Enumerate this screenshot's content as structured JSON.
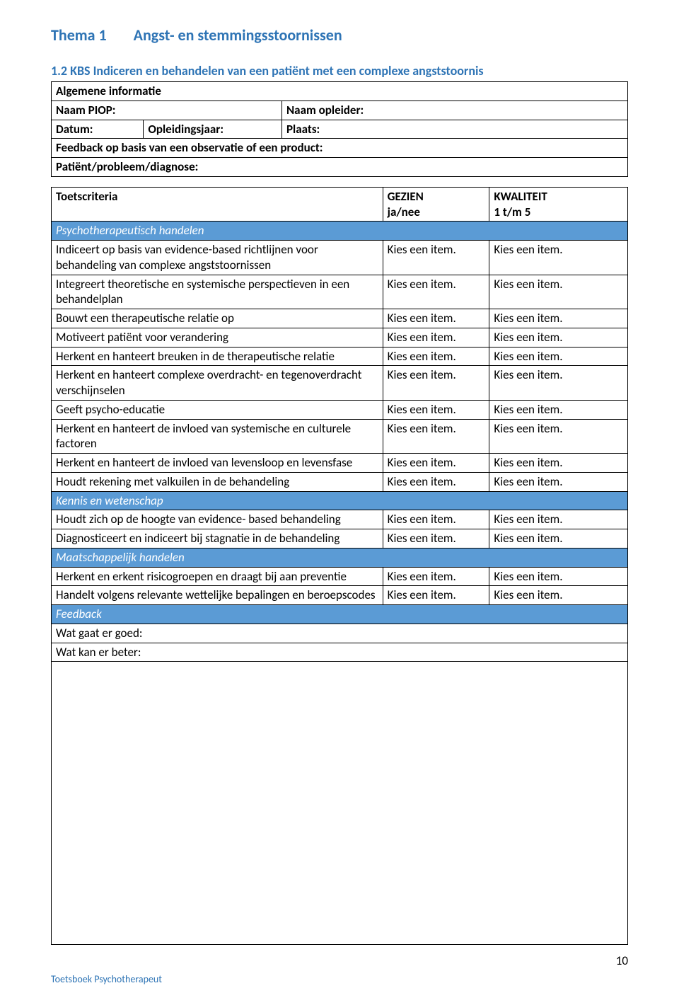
{
  "theme": {
    "label": "Thema 1",
    "title": "Angst- en stemmingsstoornissen"
  },
  "subheading": "1.2 KBS Indiceren en behandelen van een patiënt met een complexe angststoornis",
  "info": {
    "header": "Algemene informatie",
    "naam_piop_label": "Naam PIOP:",
    "naam_opleider_label": "Naam opleider:",
    "datum_label": "Datum:",
    "opleidingsjaar_label": "Opleidingsjaar:",
    "plaats_label": "Plaats:",
    "feedback_basis": "Feedback op basis van een observatie of een product:",
    "patient_diag": "Patiënt/probleem/diagnose:"
  },
  "criteria_header": {
    "col1": "Toetscriteria",
    "col2_line1": "GEZIEN",
    "col2_line2": "ja/nee",
    "col3_line1": "KWALITEIT",
    "col3_line2": "1 t/m 5"
  },
  "section_psycho": "Psychotherapeutisch handelen",
  "section_kennis": "Kennis en wetenschap",
  "section_maat": "Maatschappelijk handelen",
  "section_feedback": "Feedback",
  "placeholder": "Kies een item.",
  "rows_psycho": [
    "Indiceert op basis van evidence-based richtlijnen voor behandeling van complexe angststoornissen",
    "Integreert theoretische en systemische perspectieven in een behandelplan",
    "Bouwt een therapeutische relatie op",
    "Motiveert patiënt voor verandering",
    "Herkent en hanteert breuken in de therapeutische relatie",
    "Herkent en hanteert complexe overdracht- en tegenoverdracht verschijnselen",
    "Geeft psycho-educatie",
    "Herkent en hanteert de invloed van systemische en culturele factoren",
    "Herkent en hanteert de invloed van levensloop en levensfase",
    "Houdt rekening met valkuilen in de behandeling"
  ],
  "rows_kennis": [
    "Houdt zich op de hoogte van evidence- based behandeling",
    "Diagnosticeert en indiceert bij stagnatie in de behandeling"
  ],
  "rows_maat": [
    "Herkent en erkent risicogroepen en draagt bij aan preventie",
    "Handelt volgens relevante wettelijke bepalingen en beroepscodes"
  ],
  "feedback_rows": [
    "Wat gaat er goed:",
    "Wat kan er beter:"
  ],
  "footer_text": "Toetsboek Psychotherapeut",
  "page_number": "10",
  "colors": {
    "heading": "#2e74b5",
    "section_bg": "#5b9bd5",
    "border": "#000000",
    "text": "#000000"
  }
}
